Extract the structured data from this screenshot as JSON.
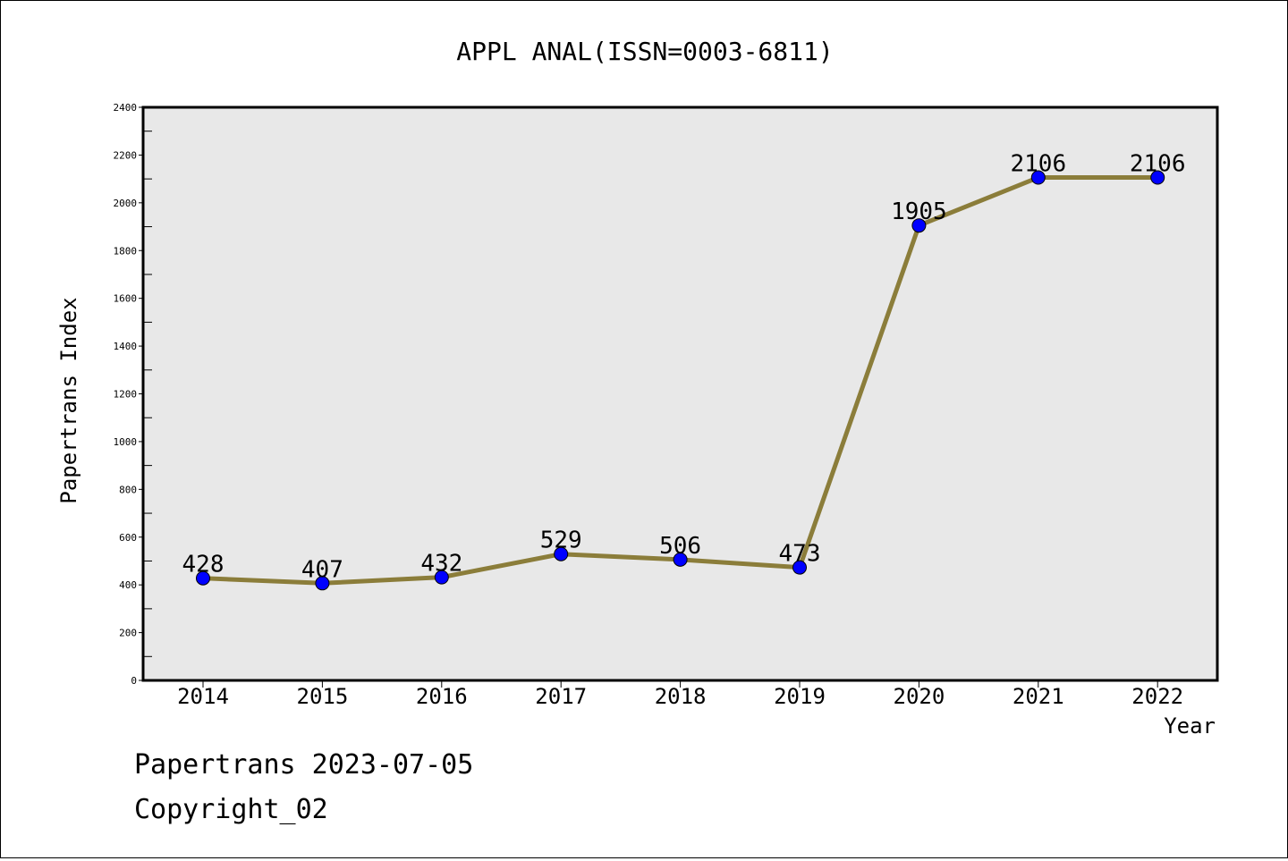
{
  "chart_data": {
    "type": "line",
    "title": "APPL ANAL(ISSN=0003-6811)",
    "xlabel": "Year",
    "ylabel": "Papertrans Index",
    "categories": [
      "2014",
      "2015",
      "2016",
      "2017",
      "2018",
      "2019",
      "2020",
      "2021",
      "2022"
    ],
    "series": [
      {
        "values": [
          428,
          407,
          432,
          529,
          506,
          473,
          1905,
          2106,
          2106
        ]
      }
    ],
    "ylim": [
      0,
      2400
    ],
    "yticks": [
      0,
      200,
      400,
      600,
      800,
      1000,
      1200,
      1400,
      1600,
      1800,
      2000,
      2200,
      2400
    ],
    "grid": false,
    "colors": {
      "plot_background": "#e8e8e8",
      "line": "#8b7d3a",
      "marker": "#0000ff"
    }
  },
  "footer": {
    "line1": "Papertrans 2023-07-05",
    "line2": "Copyright_02"
  }
}
